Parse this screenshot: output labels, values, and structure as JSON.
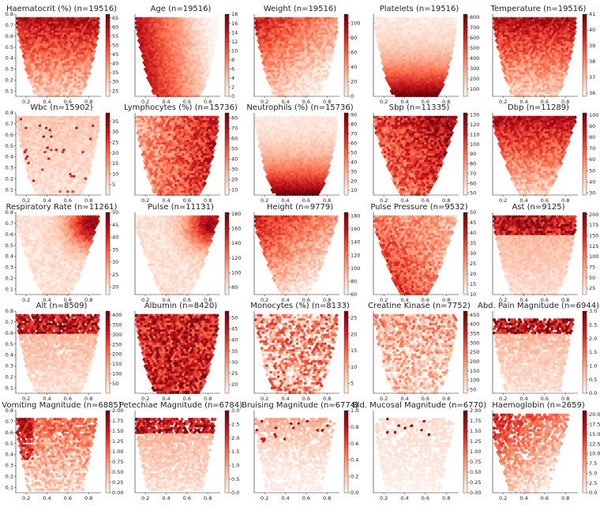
{
  "palette": {
    "low": "#fff5f0",
    "mid": "#ef3b2c",
    "high": "#67000d"
  },
  "chart_data": [
    {
      "type": "heatmap",
      "title": "Haematocrit (%) (n=19516)",
      "x_ticks": [
        "0.2",
        "0.4",
        "0.6",
        "0.8"
      ],
      "y_ticks": [
        "0.1",
        "0.2",
        "0.3",
        "0.4",
        "0.5",
        "0.6",
        "0.7",
        "0.8"
      ],
      "xlim": [
        0.1,
        0.92
      ],
      "ylim": [
        0.05,
        0.8
      ],
      "colorbar_ticks": [
        "25",
        "30",
        "35",
        "40",
        "45",
        "50",
        "55",
        "60",
        "65"
      ],
      "colorbar_range": [
        22,
        67
      ],
      "pattern": "top-dark",
      "shape": "full",
      "density": 1.0
    },
    {
      "type": "heatmap",
      "title": "Age (n=19516)",
      "x_ticks": [
        "0.2",
        "0.4",
        "0.6",
        "0.8"
      ],
      "y_ticks": [],
      "xlim": [
        0.1,
        0.92
      ],
      "ylim": [
        0.05,
        0.8
      ],
      "colorbar_ticks": [
        "0",
        "2",
        "4",
        "6",
        "8",
        "10",
        "12",
        "14",
        "16",
        "18"
      ],
      "colorbar_range": [
        0,
        18
      ],
      "pattern": "left-dark",
      "shape": "full",
      "density": 1.0
    },
    {
      "type": "heatmap",
      "title": "Weight (n=19516)",
      "x_ticks": [
        "0.2",
        "0.4",
        "0.6",
        "0.8"
      ],
      "y_ticks": [],
      "xlim": [
        0.1,
        0.92
      ],
      "ylim": [
        0.05,
        0.8
      ],
      "colorbar_ticks": [
        "0",
        "20",
        "40",
        "60",
        "80",
        "100"
      ],
      "colorbar_range": [
        0,
        112
      ],
      "pattern": "topleft-dark",
      "shape": "full",
      "density": 1.0
    },
    {
      "type": "heatmap",
      "title": "Platelets (n=19516)",
      "x_ticks": [
        "0.2",
        "0.4",
        "0.6",
        "0.8"
      ],
      "y_ticks": [],
      "xlim": [
        0.1,
        0.92
      ],
      "ylim": [
        0.05,
        0.8
      ],
      "colorbar_ticks": [
        "100",
        "200",
        "300",
        "400",
        "500",
        "600",
        "700",
        "800"
      ],
      "colorbar_range": [
        30,
        830
      ],
      "pattern": "bottom-dark",
      "shape": "full",
      "density": 1.0
    },
    {
      "type": "heatmap",
      "title": "Temperature (n=19516)",
      "x_ticks": [
        "0.2",
        "0.4",
        "0.6",
        "0.8"
      ],
      "y_ticks": [],
      "xlim": [
        0.1,
        0.92
      ],
      "ylim": [
        0.05,
        0.8
      ],
      "colorbar_ticks": [
        "36",
        "37",
        "38",
        "39",
        "40",
        "41"
      ],
      "colorbar_range": [
        35.8,
        41
      ],
      "pattern": "top-dark",
      "shape": "full",
      "density": 1.0
    },
    {
      "type": "heatmap",
      "title": "Wbc (n=15902)",
      "x_ticks": [
        "0.2",
        "0.4",
        "0.6",
        "0.8"
      ],
      "y_ticks": [
        "0.1",
        "0.2",
        "0.3",
        "0.4",
        "0.5",
        "0.6",
        "0.7",
        "0.8"
      ],
      "xlim": [
        0.1,
        0.92
      ],
      "ylim": [
        0.05,
        0.8
      ],
      "colorbar_ticks": [
        "5",
        "10",
        "15",
        "20",
        "25",
        "30",
        "35"
      ],
      "colorbar_range": [
        0,
        39
      ],
      "pattern": "pale",
      "shape": "full",
      "density": 1.0
    },
    {
      "type": "heatmap",
      "title": "Lymphocytes (%) (n=15736)",
      "x_ticks": [
        "0.2",
        "0.4",
        "0.6",
        "0.8"
      ],
      "y_ticks": [],
      "xlim": [
        0.1,
        0.92
      ],
      "ylim": [
        0.05,
        0.8
      ],
      "colorbar_ticks": [
        "10",
        "20",
        "30",
        "40",
        "50",
        "60",
        "70",
        "80"
      ],
      "colorbar_range": [
        5,
        85
      ],
      "pattern": "right-dark",
      "shape": "full",
      "density": 1.0
    },
    {
      "type": "heatmap",
      "title": "Neutrophils (%) (n=15736)",
      "x_ticks": [
        "0.2",
        "0.4",
        "0.6",
        "0.8"
      ],
      "y_ticks": [],
      "xlim": [
        0.1,
        0.92
      ],
      "ylim": [
        0.05,
        0.8
      ],
      "colorbar_ticks": [
        "10",
        "20",
        "30",
        "40",
        "50",
        "60",
        "70",
        "80",
        "90"
      ],
      "colorbar_range": [
        5,
        92
      ],
      "pattern": "bottom-dark",
      "shape": "full",
      "density": 1.0
    },
    {
      "type": "heatmap",
      "title": "Sbp (n=11335)",
      "x_ticks": [
        "0.2",
        "0.4",
        "0.6",
        "0.8"
      ],
      "y_ticks": [],
      "xlim": [
        0.1,
        0.92
      ],
      "ylim": [
        0.05,
        0.8
      ],
      "colorbar_ticks": [
        "50",
        "60",
        "70",
        "80",
        "90",
        "100",
        "110",
        "120",
        "130"
      ],
      "colorbar_range": [
        48,
        132
      ],
      "pattern": "topright-dark",
      "shape": "partial",
      "density": 1.0
    },
    {
      "type": "heatmap",
      "title": "Dbp (n=11289)",
      "x_ticks": [
        "0.2",
        "0.4",
        "0.6",
        "0.8"
      ],
      "y_ticks": [],
      "xlim": [
        0.1,
        0.92
      ],
      "ylim": [
        0.05,
        0.8
      ],
      "colorbar_ticks": [
        "30",
        "40",
        "50",
        "60",
        "70",
        "80",
        "90",
        "100"
      ],
      "colorbar_range": [
        28,
        102
      ],
      "pattern": "top-dark",
      "shape": "partial",
      "density": 1.0
    },
    {
      "type": "heatmap",
      "title": "Respiratory Rate (n=11261)",
      "x_ticks": [
        "0.2",
        "0.4",
        "0.6",
        "0.8"
      ],
      "y_ticks": [
        "0.1",
        "0.2",
        "0.3",
        "0.4",
        "0.5",
        "0.6",
        "0.7",
        "0.8"
      ],
      "xlim": [
        0.1,
        0.92
      ],
      "ylim": [
        0.05,
        0.8
      ],
      "colorbar_ticks": [
        "20",
        "25",
        "30",
        "35",
        "40",
        "45",
        "50"
      ],
      "colorbar_range": [
        17,
        50
      ],
      "pattern": "right-spot",
      "shape": "partial",
      "density": 1.0
    },
    {
      "type": "heatmap",
      "title": "Pulse (n=11131)",
      "x_ticks": [
        "0.2",
        "0.4",
        "0.6",
        "0.8"
      ],
      "y_ticks": [],
      "xlim": [
        0.1,
        0.92
      ],
      "ylim": [
        0.05,
        0.8
      ],
      "colorbar_ticks": [
        "80",
        "100",
        "120",
        "140",
        "160",
        "180"
      ],
      "colorbar_range": [
        70,
        182
      ],
      "pattern": "right-spot",
      "shape": "partial",
      "density": 1.0
    },
    {
      "type": "heatmap",
      "title": "Height (n=9779)",
      "x_ticks": [
        "0.2",
        "0.4",
        "0.6",
        "0.8"
      ],
      "y_ticks": [],
      "xlim": [
        0.1,
        0.92
      ],
      "ylim": [
        0.05,
        0.8
      ],
      "colorbar_ticks": [
        "60",
        "80",
        "100",
        "120",
        "140",
        "160",
        "180"
      ],
      "colorbar_range": [
        60,
        185
      ],
      "pattern": "topleft-dark",
      "shape": "partial",
      "density": 1.0
    },
    {
      "type": "heatmap",
      "title": "Pulse Pressure (n=9532)",
      "x_ticks": [
        "0.2",
        "0.4",
        "0.6",
        "0.8"
      ],
      "y_ticks": [],
      "xlim": [
        0.1,
        0.92
      ],
      "ylim": [
        0.05,
        0.8
      ],
      "colorbar_ticks": [
        "10",
        "15",
        "20",
        "25",
        "30",
        "35",
        "40",
        "45",
        "50"
      ],
      "colorbar_range": [
        10,
        50
      ],
      "pattern": "bottomleft-dark",
      "shape": "partial",
      "density": 1.0
    },
    {
      "type": "heatmap",
      "title": "Ast (n=9125)",
      "x_ticks": [
        "0.2",
        "0.4",
        "0.6",
        "0.8"
      ],
      "y_ticks": [],
      "xlim": [
        0.1,
        0.92
      ],
      "ylim": [
        0.05,
        0.8
      ],
      "colorbar_ticks": [
        "25",
        "50",
        "75",
        "100",
        "125",
        "150",
        "175",
        "200"
      ],
      "colorbar_range": [
        10,
        205
      ],
      "pattern": "top-band",
      "shape": "full",
      "density": 1.0
    },
    {
      "type": "heatmap",
      "title": "Alt (n=8509)",
      "x_ticks": [
        "0.2",
        "0.4",
        "0.6",
        "0.8"
      ],
      "y_ticks": [
        "0.1",
        "0.2",
        "0.3",
        "0.4",
        "0.5",
        "0.6",
        "0.7",
        "0.8"
      ],
      "xlim": [
        0.1,
        0.92
      ],
      "ylim": [
        0.05,
        0.8
      ],
      "colorbar_ticks": [
        "50",
        "100",
        "150",
        "200",
        "250",
        "300",
        "350",
        "400"
      ],
      "colorbar_range": [
        0,
        420
      ],
      "pattern": "top-band",
      "shape": "full",
      "density": 0.9
    },
    {
      "type": "heatmap",
      "title": "Albumin (n=8420)",
      "x_ticks": [
        "0.2",
        "0.4",
        "0.6",
        "0.8"
      ],
      "y_ticks": [],
      "xlim": [
        0.1,
        0.92
      ],
      "ylim": [
        0.05,
        0.8
      ],
      "colorbar_ticks": [
        "20",
        "25",
        "30",
        "35",
        "40",
        "45",
        "50"
      ],
      "colorbar_range": [
        16,
        53
      ],
      "pattern": "dark-all",
      "shape": "full",
      "density": 1.0
    },
    {
      "type": "heatmap",
      "title": "Monocytes (%) (n=8133)",
      "x_ticks": [
        "0.2",
        "0.4",
        "0.6",
        "0.8"
      ],
      "y_ticks": [],
      "xlim": [
        0.1,
        0.92
      ],
      "ylim": [
        0.05,
        0.8
      ],
      "colorbar_ticks": [
        "5",
        "10",
        "15",
        "20",
        "25"
      ],
      "colorbar_range": [
        2,
        27
      ],
      "pattern": "noisy-mid",
      "shape": "full",
      "density": 0.9
    },
    {
      "type": "heatmap",
      "title": "Creatine Kinase (n=7752)",
      "x_ticks": [
        "0.2",
        "0.4",
        "0.6",
        "0.8"
      ],
      "y_ticks": [],
      "xlim": [
        0.1,
        0.92
      ],
      "ylim": [
        0.05,
        0.8
      ],
      "colorbar_ticks": [
        "50",
        "100",
        "150",
        "200",
        "250",
        "300",
        "350",
        "400",
        "450"
      ],
      "colorbar_range": [
        30,
        470
      ],
      "pattern": "noisy-low",
      "shape": "full",
      "density": 0.8
    },
    {
      "type": "heatmap",
      "title": "Abd. Pain Magnitude (n=6944)",
      "x_ticks": [
        "0.2",
        "0.4",
        "0.6",
        "0.8"
      ],
      "y_ticks": [],
      "xlim": [
        0.1,
        0.92
      ],
      "ylim": [
        0.05,
        0.8
      ],
      "colorbar_ticks": [
        "0.0",
        "0.5",
        "1.0",
        "1.5",
        "2.0",
        "2.5",
        "3.0"
      ],
      "colorbar_range": [
        0,
        3
      ],
      "pattern": "top-band",
      "shape": "small",
      "density": 0.85
    },
    {
      "type": "heatmap",
      "title": "Vomiting Magnitude (n=6885)",
      "x_ticks": [
        "0.2",
        "0.4",
        "0.6",
        "0.8"
      ],
      "y_ticks": [
        "0.1",
        "0.2",
        "0.3",
        "0.4",
        "0.5",
        "0.6",
        "0.7",
        "0.8"
      ],
      "xlim": [
        0.1,
        0.92
      ],
      "ylim": [
        0.05,
        0.8
      ],
      "colorbar_ticks": [
        "0.00",
        "0.25",
        "0.50",
        "0.75",
        "1.00",
        "1.25",
        "1.50",
        "1.75",
        "2.00"
      ],
      "colorbar_range": [
        0,
        2
      ],
      "pattern": "left-spot",
      "shape": "small",
      "density": 0.85
    },
    {
      "type": "heatmap",
      "title": "Petechiae Magnitude (n=6784)",
      "x_ticks": [
        "0.2",
        "0.4",
        "0.6",
        "0.8"
      ],
      "y_ticks": [],
      "xlim": [
        0.1,
        0.92
      ],
      "ylim": [
        0.05,
        0.8
      ],
      "colorbar_ticks": [
        "0.0",
        "0.5",
        "1.0",
        "1.5",
        "2.0",
        "2.5",
        "3.0"
      ],
      "colorbar_range": [
        0,
        3
      ],
      "pattern": "top-band",
      "shape": "small",
      "density": 0.85
    },
    {
      "type": "heatmap",
      "title": "Bruising Magnitude (n=6774)",
      "x_ticks": [
        "0.2",
        "0.4",
        "0.6",
        "0.8"
      ],
      "y_ticks": [],
      "xlim": [
        0.1,
        0.92
      ],
      "ylim": [
        0.05,
        0.8
      ],
      "colorbar_ticks": [
        "0.0",
        "0.2",
        "0.4",
        "0.6",
        "0.8",
        "1.0"
      ],
      "colorbar_range": [
        0,
        1
      ],
      "pattern": "sparse-top",
      "shape": "small",
      "density": 0.7
    },
    {
      "type": "heatmap",
      "title": "Bld. Mucosal Magnitude (n=6770)",
      "x_ticks": [
        "0.2",
        "0.4",
        "0.6",
        "0.8"
      ],
      "y_ticks": [],
      "xlim": [
        0.1,
        0.92
      ],
      "ylim": [
        0.05,
        0.8
      ],
      "colorbar_ticks": [
        "0.00",
        "0.25",
        "0.50",
        "0.75",
        "1.00",
        "1.25",
        "1.50",
        "1.75",
        "2.00"
      ],
      "colorbar_range": [
        0,
        2
      ],
      "pattern": "very-pale",
      "shape": "small",
      "density": 0.6
    },
    {
      "type": "heatmap",
      "title": "Haemoglobin (n=2659)",
      "x_ticks": [
        "0.2",
        "0.4",
        "0.6",
        "0.8"
      ],
      "y_ticks": [],
      "xlim": [
        0.1,
        0.92
      ],
      "ylim": [
        0.05,
        0.8
      ],
      "colorbar_ticks": [
        "0.0",
        "2.5",
        "5.0",
        "7.5",
        "10.0",
        "12.5",
        "15.0",
        "17.5",
        "20.0"
      ],
      "colorbar_range": [
        0,
        21
      ],
      "pattern": "topleft-dark",
      "shape": "topleft",
      "density": 0.75
    }
  ]
}
